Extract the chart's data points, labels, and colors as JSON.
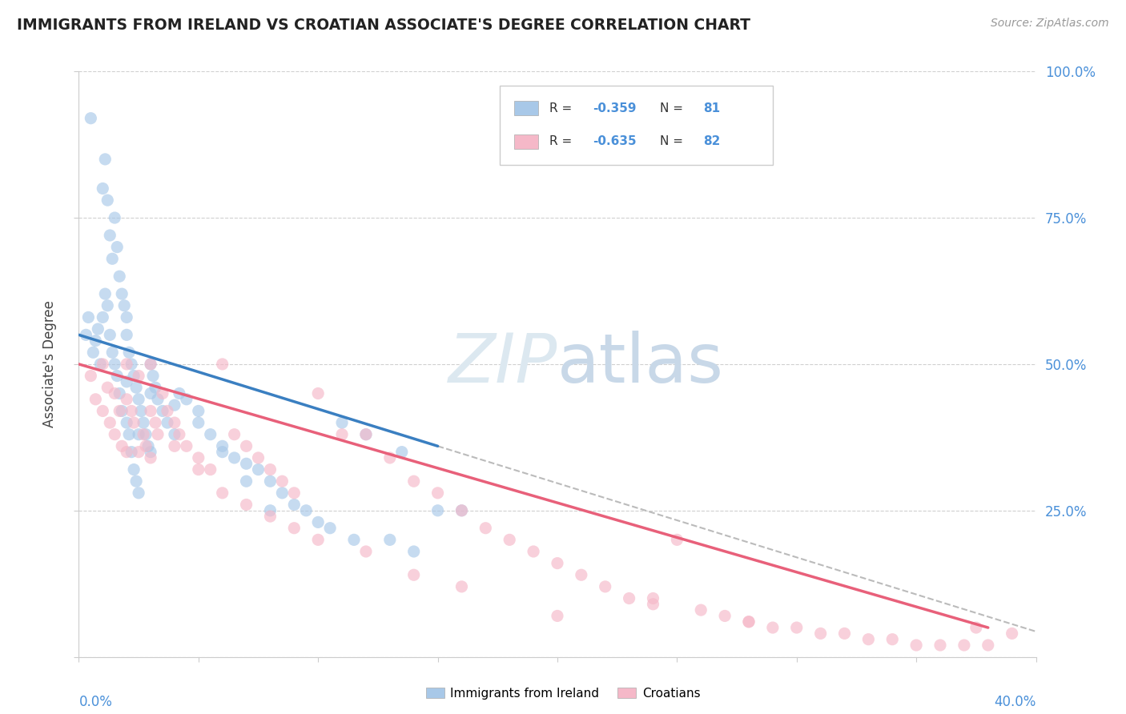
{
  "title": "IMMIGRANTS FROM IRELAND VS CROATIAN ASSOCIATE'S DEGREE CORRELATION CHART",
  "source": "Source: ZipAtlas.com",
  "r_ireland": -0.359,
  "n_ireland": 81,
  "r_croatian": -0.635,
  "n_croatian": 82,
  "color_ireland": "#a8c8e8",
  "color_croatian": "#f5b8c8",
  "color_ireland_line": "#3a7fc1",
  "color_croatian_line": "#e8607a",
  "color_dashed": "#bbbbbb",
  "legend_label_ireland": "Immigrants from Ireland",
  "legend_label_croatian": "Croatians",
  "xmin": 0.0,
  "xmax": 40.0,
  "ymin": 0.0,
  "ymax": 100.0,
  "ireland_scatter_x": [
    0.3,
    0.4,
    0.5,
    0.6,
    0.7,
    0.8,
    0.9,
    1.0,
    1.0,
    1.1,
    1.1,
    1.2,
    1.2,
    1.3,
    1.3,
    1.4,
    1.4,
    1.5,
    1.5,
    1.6,
    1.6,
    1.7,
    1.7,
    1.8,
    1.8,
    1.9,
    2.0,
    2.0,
    2.0,
    2.1,
    2.1,
    2.2,
    2.2,
    2.3,
    2.3,
    2.4,
    2.4,
    2.5,
    2.5,
    2.6,
    2.7,
    2.8,
    2.9,
    3.0,
    3.0,
    3.1,
    3.2,
    3.3,
    3.5,
    3.7,
    4.0,
    4.2,
    4.5,
    5.0,
    5.5,
    6.0,
    6.5,
    7.0,
    7.5,
    8.0,
    8.5,
    9.0,
    9.5,
    10.0,
    10.5,
    11.0,
    11.5,
    12.0,
    13.0,
    14.0,
    3.0,
    4.0,
    5.0,
    6.0,
    7.0,
    8.0,
    13.5,
    15.0,
    16.0,
    2.0,
    2.5
  ],
  "ireland_scatter_y": [
    55,
    58,
    92,
    52,
    54,
    56,
    50,
    80,
    58,
    85,
    62,
    78,
    60,
    72,
    55,
    68,
    52,
    75,
    50,
    70,
    48,
    65,
    45,
    62,
    42,
    60,
    58,
    55,
    40,
    52,
    38,
    50,
    35,
    48,
    32,
    46,
    30,
    44,
    28,
    42,
    40,
    38,
    36,
    50,
    35,
    48,
    46,
    44,
    42,
    40,
    38,
    45,
    44,
    40,
    38,
    35,
    34,
    33,
    32,
    30,
    28,
    26,
    25,
    23,
    22,
    40,
    20,
    38,
    20,
    18,
    45,
    43,
    42,
    36,
    30,
    25,
    35,
    25,
    25,
    47,
    38
  ],
  "croatian_scatter_x": [
    0.5,
    0.7,
    1.0,
    1.0,
    1.2,
    1.3,
    1.5,
    1.5,
    1.7,
    1.8,
    2.0,
    2.0,
    2.0,
    2.2,
    2.3,
    2.5,
    2.5,
    2.7,
    2.8,
    3.0,
    3.0,
    3.2,
    3.3,
    3.5,
    3.7,
    4.0,
    4.2,
    4.5,
    5.0,
    5.5,
    6.0,
    6.5,
    7.0,
    7.5,
    8.0,
    8.5,
    9.0,
    10.0,
    11.0,
    12.0,
    13.0,
    14.0,
    15.0,
    16.0,
    17.0,
    18.0,
    19.0,
    20.0,
    21.0,
    22.0,
    23.0,
    24.0,
    25.0,
    26.0,
    27.0,
    28.0,
    29.0,
    30.0,
    31.0,
    32.0,
    33.0,
    34.0,
    35.0,
    36.0,
    37.0,
    38.0,
    39.0,
    3.0,
    4.0,
    5.0,
    6.0,
    7.0,
    8.0,
    9.0,
    10.0,
    12.0,
    14.0,
    16.0,
    20.0,
    24.0,
    28.0,
    37.5
  ],
  "croatian_scatter_y": [
    48,
    44,
    50,
    42,
    46,
    40,
    45,
    38,
    42,
    36,
    50,
    44,
    35,
    42,
    40,
    48,
    35,
    38,
    36,
    50,
    34,
    40,
    38,
    45,
    42,
    40,
    38,
    36,
    34,
    32,
    50,
    38,
    36,
    34,
    32,
    30,
    28,
    45,
    38,
    38,
    34,
    30,
    28,
    25,
    22,
    20,
    18,
    16,
    14,
    12,
    10,
    10,
    20,
    8,
    7,
    6,
    5,
    5,
    4,
    4,
    3,
    3,
    2,
    2,
    2,
    2,
    4,
    42,
    36,
    32,
    28,
    26,
    24,
    22,
    20,
    18,
    14,
    12,
    7,
    9,
    6,
    5
  ]
}
